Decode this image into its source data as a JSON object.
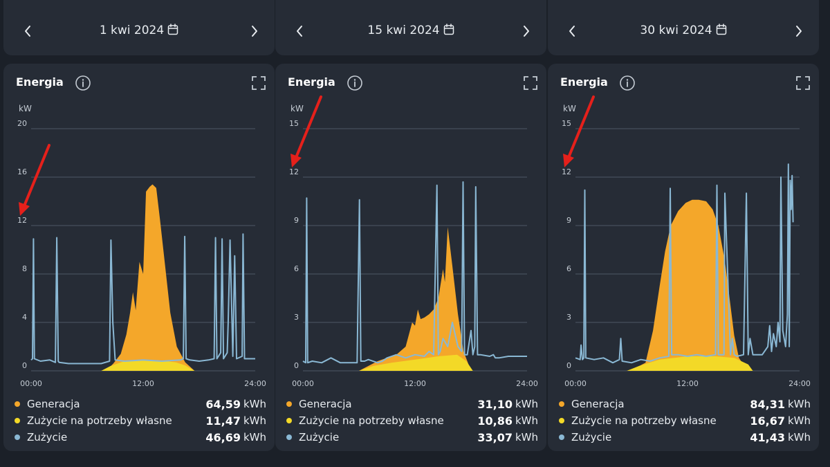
{
  "colors": {
    "generation": "#f4a72a",
    "self_consumption": "#f3d927",
    "consumption": "#8ab8d4",
    "arrow": "#e5201b",
    "grid": "#4e5866",
    "tick": "#c5ccd4"
  },
  "panels": [
    {
      "date": "1 kwi 2024",
      "card_title": "Energia",
      "legend": [
        {
          "label": "Generacja",
          "value": "64,59",
          "unit": "kWh"
        },
        {
          "label": "Zużycie na potrzeby własne",
          "value": "11,47",
          "unit": "kWh"
        },
        {
          "label": "Zużycie",
          "value": "46,69",
          "unit": "kWh"
        }
      ]
    },
    {
      "date": "15 kwi 2024",
      "card_title": "Energia",
      "legend": [
        {
          "label": "Generacja",
          "value": "31,10",
          "unit": "kWh"
        },
        {
          "label": "Zużycie na potrzeby własne",
          "value": "10,86",
          "unit": "kWh"
        },
        {
          "label": "Zużycie",
          "value": "33,07",
          "unit": "kWh"
        }
      ]
    },
    {
      "date": "30 kwi 2024",
      "card_title": "Energia",
      "legend": [
        {
          "label": "Generacja",
          "value": "84,31",
          "unit": "kWh"
        },
        {
          "label": "Zużycie na potrzeby własne",
          "value": "16,67",
          "unit": "kWh"
        },
        {
          "label": "Zużycie",
          "value": "41,43",
          "unit": "kWh"
        }
      ]
    }
  ],
  "chart_data": [
    {
      "type": "area",
      "title": "Energia",
      "ylabel": "kW",
      "xlim": [
        0,
        24
      ],
      "ylim": [
        0,
        20
      ],
      "yticks": [
        "0",
        "4",
        "8",
        "12",
        "16",
        "20"
      ],
      "xticks": [
        "00:00",
        "12:00",
        "24:00"
      ],
      "arrow_at_value": 12,
      "series": [
        {
          "name": "Generacja",
          "type": "area",
          "x": [
            0,
            8,
            8.8,
            9.6,
            10.2,
            10.6,
            10.9,
            11.2,
            11.6,
            12.0,
            12.3,
            12.7,
            13.0,
            13.4,
            13.8,
            14.3,
            14.9,
            15.6,
            16.5,
            17.5,
            24
          ],
          "y": [
            0,
            0,
            0.6,
            1.4,
            3.0,
            4.8,
            6.5,
            5.0,
            9.0,
            8.0,
            14.8,
            15.2,
            15.4,
            15.1,
            12.5,
            9.0,
            4.8,
            2.0,
            0.7,
            0,
            0
          ]
        },
        {
          "name": "Zużycie na potrzeby własne",
          "type": "area",
          "x": [
            0,
            7.5,
            8.5,
            10,
            12,
            14,
            15.5,
            16.5,
            17.5,
            24
          ],
          "y": [
            0,
            0,
            0.4,
            0.8,
            0.9,
            0.85,
            0.7,
            0.45,
            0,
            0
          ]
        },
        {
          "name": "Zużycie",
          "type": "line",
          "x": [
            0,
            0.15,
            0.25,
            0.35,
            1.0,
            2.0,
            2.6,
            2.75,
            2.9,
            3.0,
            4.0,
            6.0,
            7.5,
            8.4,
            8.55,
            8.75,
            9.0,
            10.0,
            12.0,
            14.0,
            16.0,
            16.3,
            16.45,
            16.6,
            17.0,
            18.0,
            19.0,
            19.6,
            19.75,
            19.9,
            20.3,
            20.45,
            20.6,
            21.0,
            21.1,
            21.3,
            21.6,
            21.8,
            22.0,
            22.6,
            22.7,
            22.85,
            23.0,
            24.0
          ],
          "y": [
            0.9,
            1.0,
            10.9,
            1.0,
            0.8,
            0.9,
            0.7,
            11.0,
            0.8,
            0.7,
            0.6,
            0.6,
            0.6,
            0.8,
            10.8,
            4.0,
            0.9,
            0.8,
            0.9,
            0.8,
            0.9,
            1.0,
            11.1,
            1.0,
            0.9,
            0.8,
            0.9,
            1.0,
            11.0,
            1.0,
            1.5,
            10.9,
            1.0,
            1.5,
            4.0,
            10.8,
            1.2,
            9.5,
            1.0,
            1.2,
            11.3,
            1.0,
            1.0,
            1.0
          ]
        }
      ]
    },
    {
      "type": "area",
      "title": "Energia",
      "ylabel": "kW",
      "xlim": [
        0,
        24
      ],
      "ylim": [
        0,
        15
      ],
      "yticks": [
        "0",
        "3",
        "6",
        "9",
        "12",
        "15"
      ],
      "xticks": [
        "00:00",
        "12:00",
        "24:00"
      ],
      "arrow_at_value": 12,
      "series": [
        {
          "name": "Generacja",
          "type": "area",
          "x": [
            0,
            6.0,
            7.0,
            8.0,
            9.0,
            10.0,
            11.0,
            11.7,
            12.0,
            12.3,
            12.6,
            13.0,
            13.5,
            14.0,
            14.5,
            15.0,
            15.2,
            15.5,
            16.0,
            16.6,
            17.2,
            18.0,
            24
          ],
          "y": [
            0,
            0,
            0.3,
            0.6,
            0.8,
            1.0,
            1.5,
            3.0,
            2.8,
            3.8,
            3.2,
            3.3,
            3.5,
            3.8,
            4.5,
            6.3,
            5.5,
            8.9,
            6.5,
            3.5,
            1.2,
            0,
            0
          ]
        },
        {
          "name": "Zużycie na potrzeby własne",
          "type": "area",
          "x": [
            0,
            6.0,
            7.5,
            9.5,
            12.0,
            14.5,
            16.5,
            17.5,
            18.2,
            24
          ],
          "y": [
            0,
            0,
            0.3,
            0.5,
            0.7,
            0.9,
            1.0,
            0.6,
            0,
            0
          ]
        },
        {
          "name": "Zużycie",
          "type": "line",
          "x": [
            0,
            0.3,
            0.4,
            0.5,
            1.0,
            2.0,
            3.0,
            4.0,
            5.8,
            6.05,
            6.2,
            6.6,
            7.0,
            8.0,
            8.5,
            9.0,
            10.0,
            11.0,
            12.0,
            13.0,
            13.5,
            14.0,
            14.35,
            14.5,
            14.7,
            15.0,
            15.5,
            16.0,
            16.6,
            17.0,
            17.15,
            17.3,
            17.6,
            18.0,
            18.2,
            18.4,
            18.5,
            18.7,
            19.0,
            20.0,
            20.4,
            20.6,
            21.0,
            22.0,
            24.0
          ],
          "y": [
            0.6,
            0.5,
            10.7,
            0.5,
            0.6,
            0.5,
            0.8,
            0.5,
            0.5,
            10.6,
            0.6,
            0.6,
            0.7,
            0.5,
            0.6,
            0.8,
            1.0,
            0.8,
            1.0,
            0.9,
            1.2,
            1.0,
            11.5,
            1.0,
            1.2,
            2.0,
            1.5,
            3.0,
            1.5,
            1.2,
            11.7,
            1.0,
            1.0,
            2.5,
            1.0,
            1.5,
            11.4,
            1.0,
            1.0,
            0.9,
            1.0,
            0.8,
            0.8,
            0.9,
            0.9
          ]
        }
      ]
    },
    {
      "type": "area",
      "title": "Energia",
      "ylabel": "kW",
      "xlim": [
        0,
        24
      ],
      "ylim": [
        0,
        15
      ],
      "yticks": [
        "0",
        "3",
        "6",
        "9",
        "12",
        "15"
      ],
      "xticks": [
        "00:00",
        "12:00",
        "24:00"
      ],
      "arrow_at_value": 12,
      "series": [
        {
          "name": "Generacja",
          "type": "area",
          "x": [
            0,
            5.5,
            6.5,
            7.5,
            8.3,
            9.0,
            9.6,
            10.2,
            11.0,
            11.8,
            12.5,
            13.2,
            14.0,
            14.7,
            15.3,
            16.0,
            16.5,
            17.0,
            17.5,
            18.2,
            19.0,
            24
          ],
          "y": [
            0,
            0,
            0.2,
            0.5,
            2.5,
            5.2,
            7.4,
            9.0,
            9.9,
            10.4,
            10.6,
            10.6,
            10.5,
            10.0,
            9.0,
            6.8,
            4.5,
            2.2,
            0.8,
            0.2,
            0,
            0
          ]
        },
        {
          "name": "Zużycie na potrzeby własne",
          "type": "area",
          "x": [
            0,
            5.5,
            6.8,
            9.0,
            12.0,
            15.0,
            17.0,
            18.5,
            19.0,
            24
          ],
          "y": [
            0,
            0,
            0.3,
            0.7,
            0.9,
            0.9,
            0.8,
            0.4,
            0,
            0
          ]
        },
        {
          "name": "Zużycie",
          "type": "line",
          "x": [
            0,
            0.5,
            0.6,
            0.75,
            0.9,
            1.0,
            1.1,
            2.0,
            3.0,
            4.0,
            4.7,
            4.85,
            5.0,
            6.0,
            7.0,
            8.0,
            9.0,
            10.0,
            10.15,
            10.3,
            11.0,
            12.0,
            13.0,
            14.0,
            15.0,
            15.15,
            15.3,
            15.9,
            16.0,
            16.6,
            16.8,
            17.0,
            17.3,
            18.0,
            18.3,
            18.5,
            18.7,
            19.0,
            20.0,
            20.6,
            20.8,
            21.0,
            21.2,
            21.5,
            21.7,
            21.9,
            22.0,
            22.2,
            22.5,
            22.7,
            22.8,
            22.9,
            23.0,
            23.1,
            23.2,
            23.3
          ],
          "y": [
            0.8,
            0.7,
            1.6,
            0.7,
            0.8,
            11.2,
            0.8,
            0.7,
            0.8,
            0.5,
            0.7,
            2.0,
            0.6,
            0.5,
            0.7,
            0.6,
            0.8,
            0.9,
            11.3,
            1.0,
            1.0,
            0.9,
            1.0,
            0.9,
            1.0,
            11.5,
            1.0,
            1.0,
            11.0,
            1.0,
            2.0,
            1.0,
            0.9,
            1.0,
            11.0,
            1.0,
            2.0,
            1.0,
            1.0,
            1.5,
            2.8,
            1.2,
            2.3,
            1.5,
            3.0,
            1.8,
            12.0,
            2.5,
            1.5,
            3.5,
            12.8,
            1.5,
            11.8,
            10.0,
            12.1,
            9.2
          ]
        }
      ]
    }
  ]
}
